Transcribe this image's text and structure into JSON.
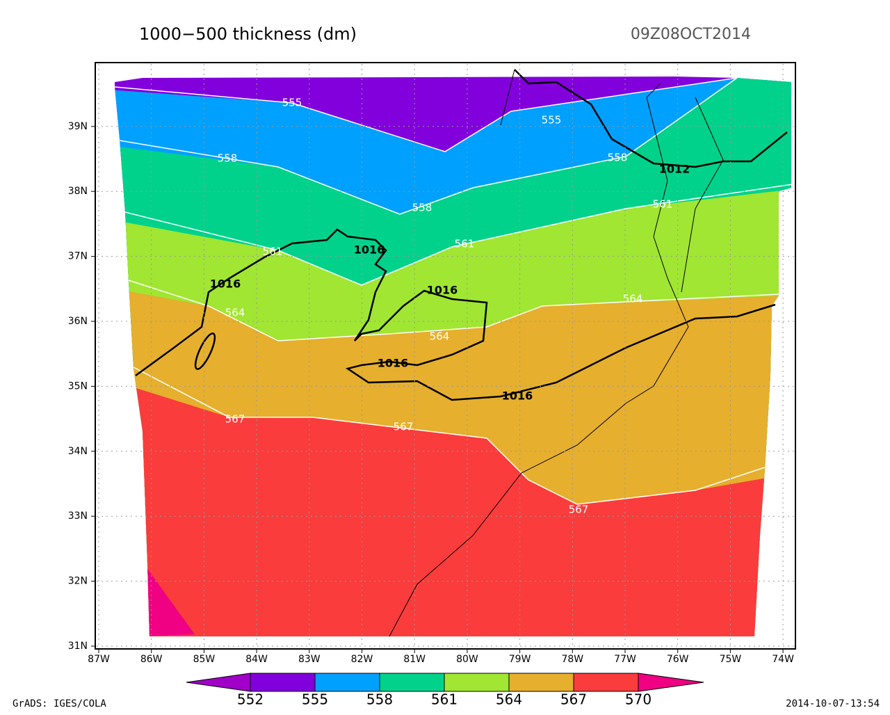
{
  "header": {
    "title": "1000−500 thickness (dm)",
    "valid_time": "09Z08OCT2014"
  },
  "map": {
    "lon_ticks": [
      {
        "value": -87,
        "label": "87W"
      },
      {
        "value": -86,
        "label": "86W"
      },
      {
        "value": -85,
        "label": "85W"
      },
      {
        "value": -84,
        "label": "84W"
      },
      {
        "value": -83,
        "label": "83W"
      },
      {
        "value": -82,
        "label": "82W"
      },
      {
        "value": -81,
        "label": "81W"
      },
      {
        "value": -80,
        "label": "80W"
      },
      {
        "value": -79,
        "label": "79W"
      },
      {
        "value": -78,
        "label": "78W"
      },
      {
        "value": -77,
        "label": "77W"
      },
      {
        "value": -76,
        "label": "76W"
      },
      {
        "value": -75,
        "label": "75W"
      },
      {
        "value": -74,
        "label": "74W"
      }
    ],
    "lat_ticks": [
      {
        "value": 31,
        "label": "31N"
      },
      {
        "value": 32,
        "label": "32N"
      },
      {
        "value": 33,
        "label": "33N"
      },
      {
        "value": 34,
        "label": "34N"
      },
      {
        "value": 35,
        "label": "35N"
      },
      {
        "value": 36,
        "label": "36N"
      },
      {
        "value": 37,
        "label": "37N"
      },
      {
        "value": 38,
        "label": "38N"
      },
      {
        "value": 39,
        "label": "39N"
      }
    ],
    "thickness_labels": [
      555,
      555,
      558,
      558,
      558,
      561,
      561,
      561,
      564,
      564,
      564,
      567,
      567,
      567
    ],
    "pressure_labels": [
      1016,
      1016,
      1016,
      1016,
      1016,
      1012
    ]
  },
  "colorbar": {
    "levels": [
      552,
      555,
      558,
      561,
      564,
      567,
      570
    ],
    "colors": [
      "#a000c8",
      "#8200dc",
      "#00a0ff",
      "#00d28c",
      "#a0e632",
      "#e6af2d",
      "#fa3c3c",
      "#f00082"
    ]
  },
  "footer": {
    "credit": "GrADS: IGES/COLA",
    "timestamp": "2014-10-07-13:54"
  }
}
